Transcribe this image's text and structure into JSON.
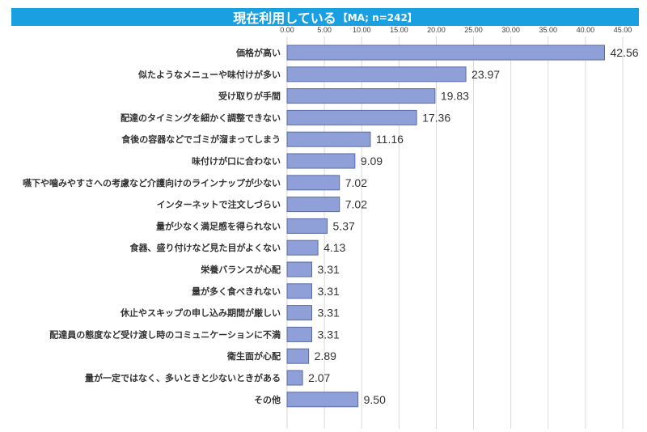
{
  "header": {
    "title": "現在利用している",
    "note": "【MA; n=242】"
  },
  "colors": {
    "title_bg": "#1aa0e0",
    "bar_fill": "#8fa0d8",
    "bar_stroke": "#5a6aa8",
    "grid": "#d9d9d9"
  },
  "chart_data": {
    "type": "bar",
    "orientation": "horizontal",
    "title": "現在利用している【MA; n=242】",
    "xlim": [
      0,
      45
    ],
    "x_ticks": [
      "0.00",
      "5.00",
      "10.00",
      "15.00",
      "20.00",
      "25.00",
      "30.00",
      "35.00",
      "40.00",
      "45.00"
    ],
    "x_axis_position": "top",
    "grid": true,
    "categories": [
      "価格が高い",
      "似たようなメニューや味付けが多い",
      "受け取りが手間",
      "配達のタイミングを細かく調整できない",
      "食後の容器などでゴミが溜まってしまう",
      "味付けが口に合わない",
      "嚥下や噛みやすさへの考慮など介護向けのラインナップが少ない",
      "インターネットで注文しづらい",
      "量が少なく満足感を得られない",
      "食器、盛り付けなど見た目がよくない",
      "栄養バランスが心配",
      "量が多く食べきれない",
      "休止やスキップの申し込み期間が厳しい",
      "配達員の態度など受け渡し時のコミュニケーションに不満",
      "衛生面が心配",
      "量が一定ではなく、多いときと少ないときがある",
      "その他"
    ],
    "values": [
      42.56,
      23.97,
      19.83,
      17.36,
      11.16,
      9.09,
      7.02,
      7.02,
      5.37,
      4.13,
      3.31,
      3.31,
      3.31,
      3.31,
      2.89,
      2.07,
      9.5
    ],
    "value_labels": [
      "42.56",
      "23.97",
      "19.83",
      "17.36",
      "11.16",
      "9.09",
      "7.02",
      "7.02",
      "5.37",
      "4.13",
      "3.31",
      "3.31",
      "3.31",
      "3.31",
      "2.89",
      "2.07",
      "9.50"
    ]
  }
}
